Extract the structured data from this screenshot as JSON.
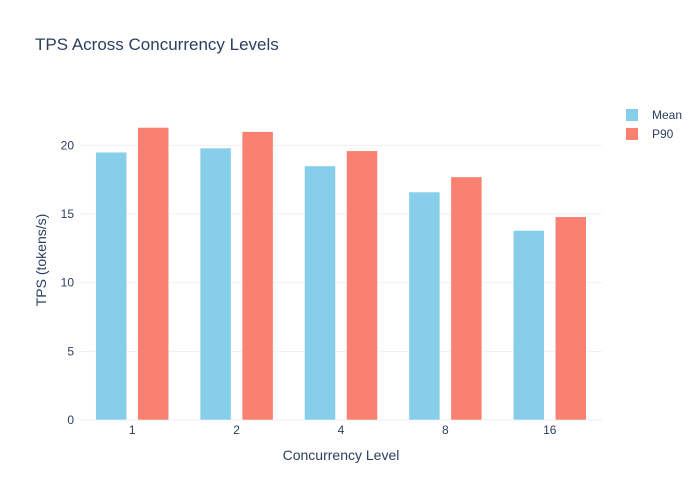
{
  "chart_data": {
    "type": "bar",
    "title": "TPS Across Concurrency Levels",
    "xlabel": "Concurrency Level",
    "ylabel": "TPS (tokens/s)",
    "categories": [
      "1",
      "2",
      "4",
      "8",
      "16"
    ],
    "series": [
      {
        "name": "Mean",
        "color": "#87ceeb",
        "values": [
          19.5,
          19.8,
          18.5,
          16.6,
          13.8
        ]
      },
      {
        "name": "P90",
        "color": "#fa8072",
        "values": [
          21.3,
          21.0,
          19.6,
          17.7,
          14.8
        ]
      }
    ],
    "yticks": [
      0,
      5,
      10,
      15,
      20
    ],
    "ylim": [
      0,
      23.3
    ],
    "grid": true,
    "legend_position": "top-right"
  }
}
